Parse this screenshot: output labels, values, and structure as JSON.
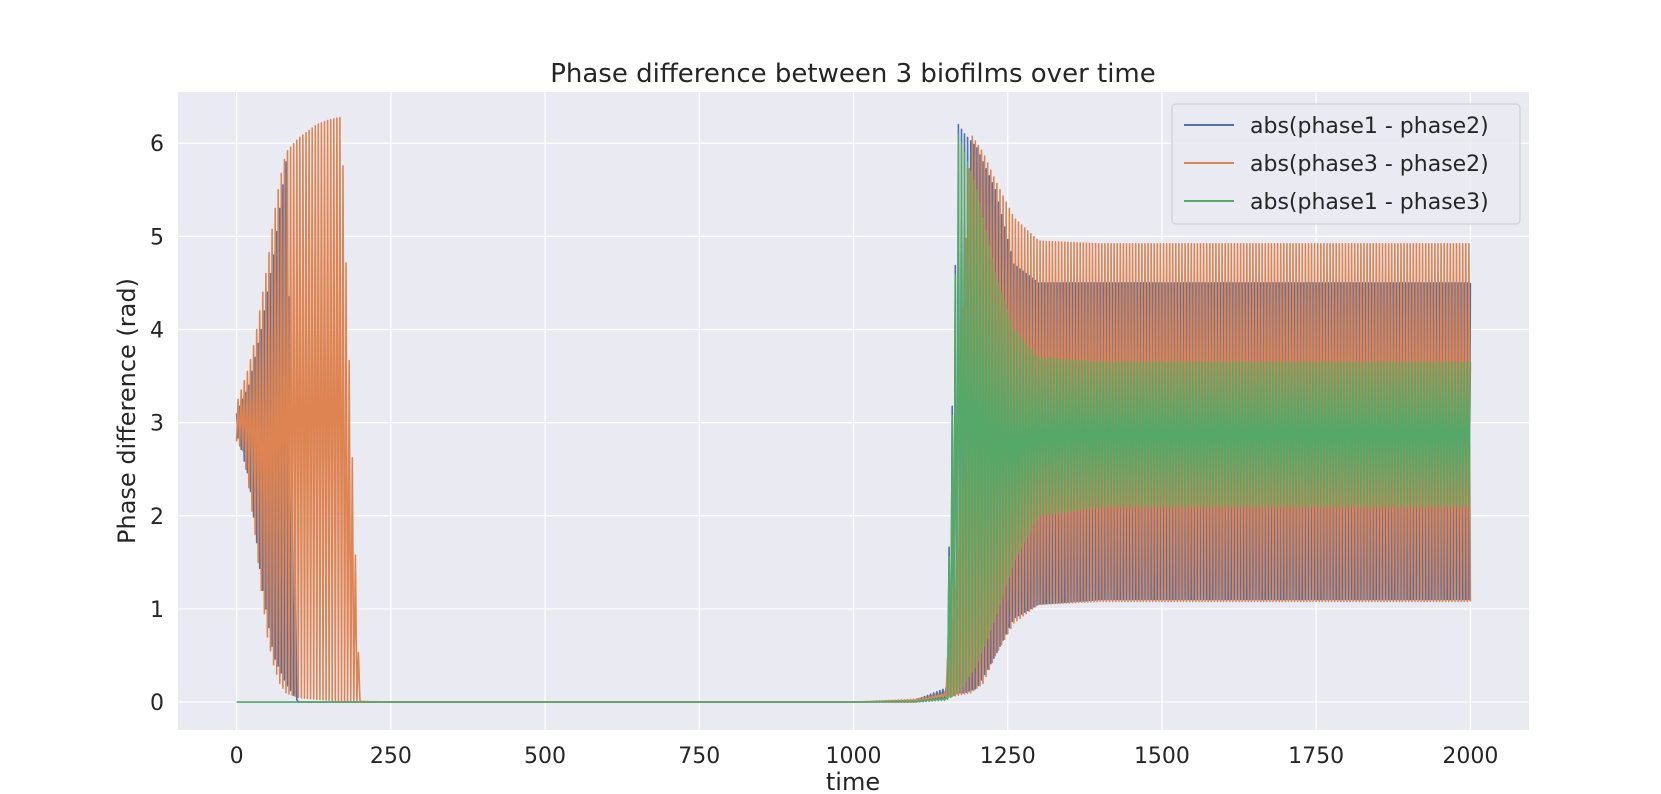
{
  "chart_data": {
    "type": "line",
    "title": "Phase difference between 3 biofilms over time",
    "xlabel": "time",
    "ylabel": "Phase difference (rad)",
    "xlim": [
      -95,
      2095
    ],
    "ylim": [
      -0.3,
      6.55
    ],
    "x_ticks": [
      0,
      250,
      500,
      750,
      1000,
      1250,
      1500,
      1750,
      2000
    ],
    "x_tick_labels": [
      "0",
      "250",
      "500",
      "750",
      "1000",
      "1250",
      "1500",
      "1750",
      "2000"
    ],
    "y_ticks": [
      0,
      1,
      2,
      3,
      4,
      5,
      6
    ],
    "y_tick_labels": [
      "0",
      "1",
      "2",
      "3",
      "4",
      "5",
      "6"
    ],
    "grid": true,
    "legend_position": "top-right",
    "series": [
      {
        "name": "abs(phase1 - phase2)",
        "color": "#4c72b0",
        "oscillating": true,
        "x": [
          0,
          20,
          40,
          60,
          80,
          100,
          200,
          1000,
          1100,
          1150,
          1170,
          1180,
          1200,
          1230,
          1260,
          1300,
          1400,
          2000
        ],
        "upper": [
          3.1,
          3.4,
          4.0,
          4.8,
          5.8,
          0.0,
          0.0,
          0.0,
          0.02,
          0.15,
          6.2,
          6.1,
          5.95,
          5.5,
          4.7,
          4.5,
          4.5,
          4.5
        ],
        "lower": [
          2.9,
          2.4,
          1.3,
          0.5,
          0.2,
          0.0,
          0.0,
          0.0,
          0.0,
          0.05,
          0.1,
          0.1,
          0.15,
          0.5,
          0.9,
          1.05,
          1.1,
          1.1
        ]
      },
      {
        "name": "abs(phase3 - phase2)",
        "color": "#dd8452",
        "oscillating": true,
        "x": [
          0,
          10,
          20,
          30,
          40,
          50,
          60,
          70,
          80,
          100,
          130,
          150,
          170,
          200,
          250,
          1000,
          1100,
          1150,
          1190,
          1210,
          1230,
          1260,
          1300,
          1400,
          2000
        ],
        "upper": [
          3.2,
          3.4,
          3.6,
          3.9,
          4.3,
          4.7,
          5.2,
          5.6,
          5.9,
          6.05,
          6.2,
          6.25,
          6.28,
          0.01,
          0.0,
          0.0,
          0.03,
          0.1,
          6.1,
          5.9,
          5.6,
          5.2,
          4.95,
          4.92,
          4.92
        ],
        "lower": [
          2.8,
          2.7,
          2.3,
          1.8,
          1.2,
          0.7,
          0.4,
          0.2,
          0.1,
          0.05,
          0.03,
          0.02,
          0.01,
          0.0,
          0.0,
          0.0,
          0.0,
          0.05,
          0.1,
          0.2,
          0.5,
          0.85,
          1.05,
          1.08,
          1.08
        ]
      },
      {
        "name": "abs(phase1 - phase3)",
        "color": "#55a868",
        "oscillating": true,
        "x": [
          0,
          1000,
          1100,
          1150,
          1170,
          1180,
          1200,
          1230,
          1260,
          1300,
          1400,
          2000
        ],
        "upper": [
          0.0,
          0.0,
          0.01,
          0.05,
          6.1,
          5.9,
          5.5,
          4.6,
          4.0,
          3.7,
          3.65,
          3.65
        ],
        "lower": [
          0.0,
          0.0,
          0.0,
          0.02,
          0.1,
          0.2,
          0.4,
          0.9,
          1.5,
          2.0,
          2.1,
          2.1
        ]
      }
    ]
  }
}
